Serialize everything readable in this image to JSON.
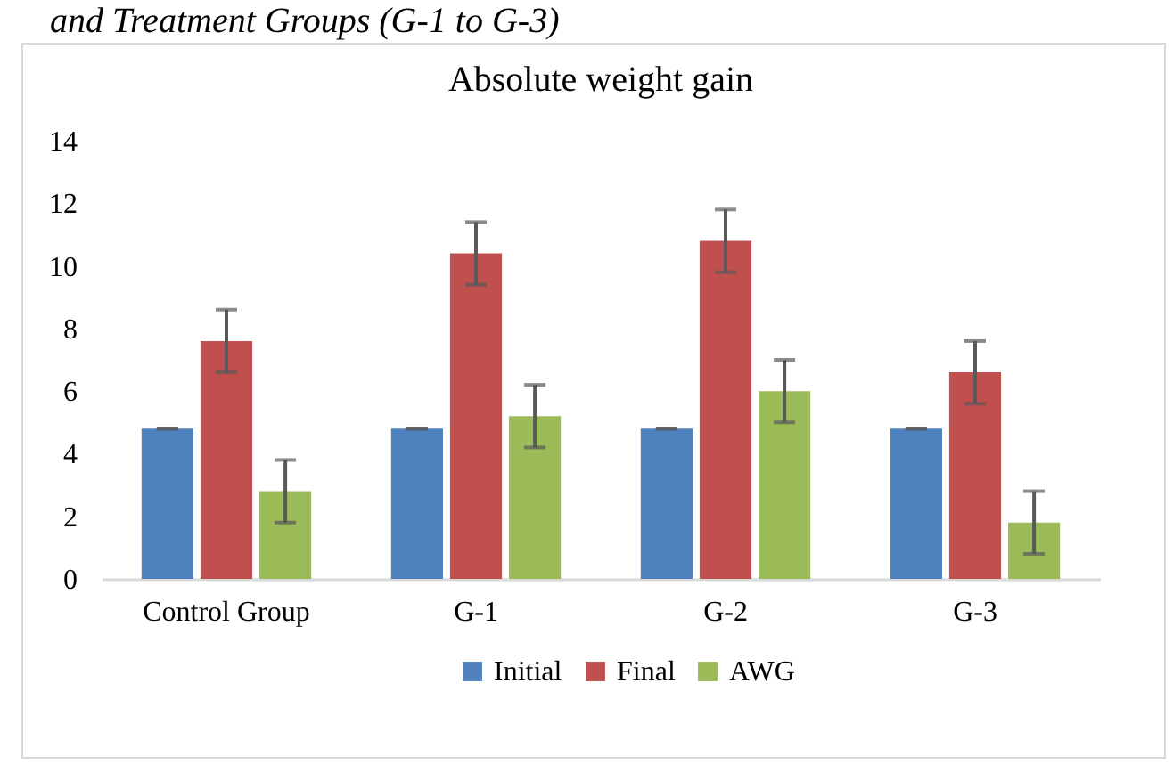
{
  "chart_data": {
    "type": "bar",
    "title": "Absolute weight gain",
    "annotations": [
      "and Treatment Groups (G-1 to G-3)"
    ],
    "categories": [
      "Control Group",
      "G-1",
      "G-2",
      "G-3"
    ],
    "series": [
      {
        "name": "Initial",
        "color": "#4f81bd",
        "values": [
          4.8,
          4.8,
          4.8,
          4.8
        ],
        "errors": [
          0,
          0,
          0,
          0
        ]
      },
      {
        "name": "Final",
        "color": "#c0504d",
        "values": [
          7.6,
          10.4,
          10.8,
          6.6
        ],
        "errors": [
          1,
          1,
          1,
          1
        ]
      },
      {
        "name": "AWG",
        "color": "#9bbb59",
        "values": [
          2.8,
          5.2,
          6.0,
          1.8
        ],
        "errors": [
          1,
          1,
          1,
          1
        ]
      }
    ],
    "ylim": [
      0,
      14
    ],
    "yticks": [
      0,
      2,
      4,
      6,
      8,
      10,
      12,
      14
    ],
    "grid": false,
    "legend": "bottom"
  }
}
